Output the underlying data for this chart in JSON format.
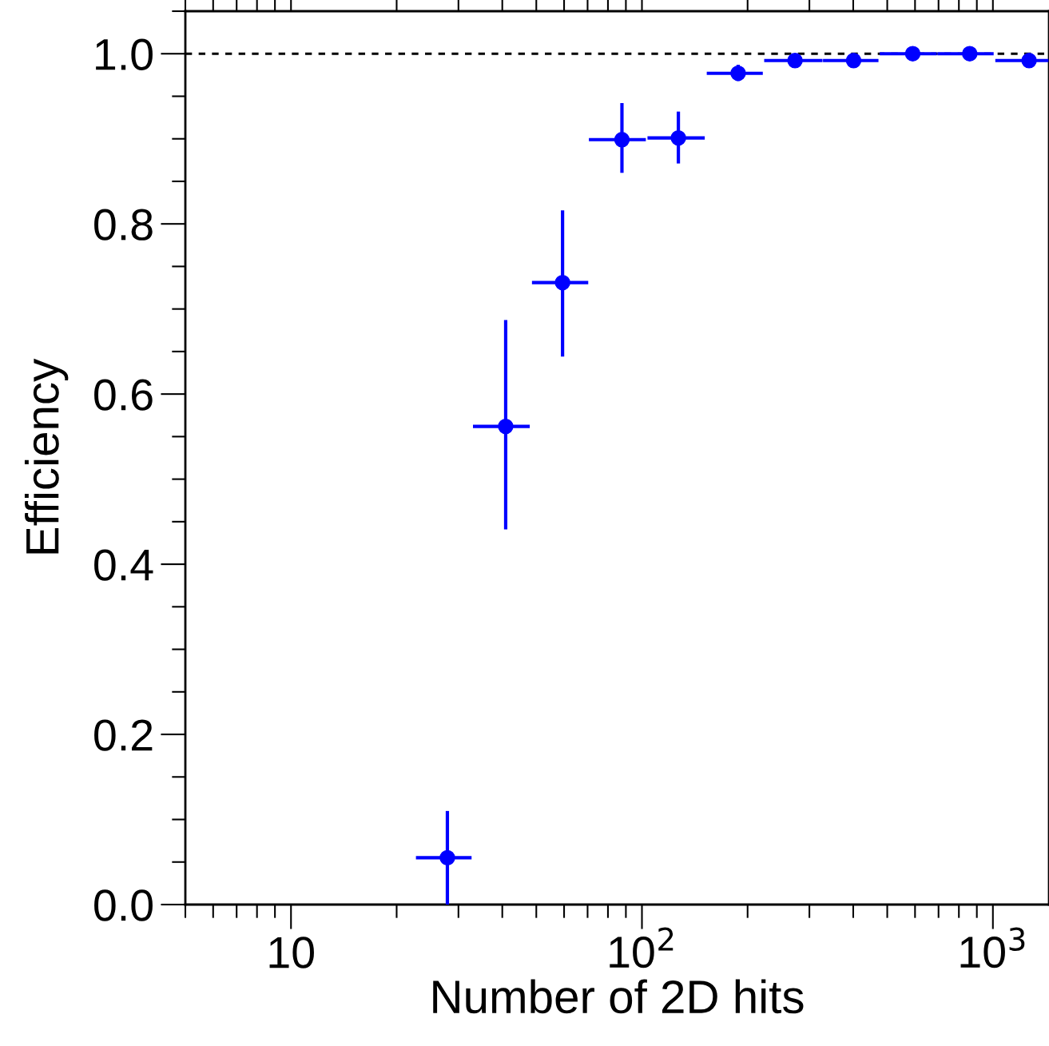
{
  "chart_data": {
    "type": "scatter",
    "xlabel": "Number of 2D hits",
    "ylabel": "Efficiency",
    "log": "x",
    "x": [
      27.9,
      40.9,
      59.4,
      87.7,
      127,
      188,
      273,
      401,
      591,
      859,
      1268
    ],
    "values": [
      0.055,
      0.562,
      0.731,
      0.899,
      0.901,
      0.977,
      0.992,
      0.992,
      1.0,
      1.0,
      0.992
    ],
    "errors": [
      [
        0.0,
        0.11
      ],
      [
        0.441,
        0.687
      ],
      [
        0.644,
        0.816
      ],
      [
        0.86,
        0.942
      ],
      [
        0.871,
        0.932
      ],
      [
        0.968,
        0.987
      ],
      null,
      null,
      null,
      null,
      null
    ],
    "xerrors": [
      [
        22.7,
        32.7
      ],
      [
        33,
        47.9
      ],
      [
        48.6,
        70.3
      ],
      [
        70.6,
        102.6
      ],
      [
        103.7,
        151
      ],
      [
        153,
        221
      ],
      [
        223,
        327
      ],
      [
        328,
        472
      ],
      [
        476,
        692
      ],
      [
        695,
        1005
      ],
      [
        1016,
        1440
      ]
    ],
    "color": "#0000ff",
    "marker": "circle",
    "xlim": [
      5,
      1445
    ],
    "ylim": [
      0,
      1.05
    ],
    "xticks": [
      10,
      {
        "value": 100,
        "label": "10$^{2}$"
      },
      {
        "value": 1000,
        "label": "10$^{3}$"
      }
    ],
    "yticks": [
      {
        "value": 0,
        "label": "0.0"
      },
      0.2,
      0.4,
      0.6,
      0.8,
      {
        "value": 1,
        "label": "1.0"
      }
    ],
    "ref_lines": [
      {
        "axis": "y",
        "value": 1,
        "color": "#000000",
        "line_style": "dashed"
      }
    ],
    "grid": false,
    "legend": false
  }
}
